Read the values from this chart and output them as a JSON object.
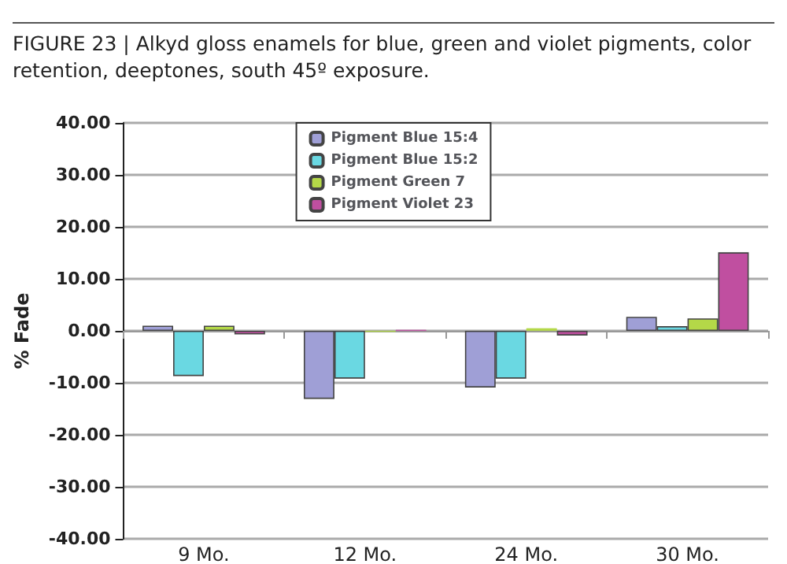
{
  "chart_data": {
    "type": "bar",
    "title": "FIGURE 23 | Alkyd gloss enamels for blue, green and violet pigments, color retention, deeptones, south 45º exposure.",
    "ylabel": "% Fade",
    "categories": [
      "9 Mo.",
      "12 Mo.",
      "24 Mo.",
      "30 Mo."
    ],
    "series": [
      {
        "name": "Pigment Blue 15:4",
        "color": "#9f9fd6",
        "values": [
          1.0,
          -13.1,
          -10.9,
          2.7
        ]
      },
      {
        "name": "Pigment Blue 15:2",
        "color": "#6ad8e2",
        "values": [
          -8.7,
          -9.2,
          -9.2,
          0.9
        ]
      },
      {
        "name": "Pigment Green 7",
        "color": "#b4d848",
        "values": [
          1.0,
          -0.2,
          0.5,
          2.4
        ]
      },
      {
        "name": "Pigment Violet 23",
        "color": "#c04fa0",
        "values": [
          -0.7,
          0.2,
          -0.9,
          15.1
        ]
      }
    ],
    "ylim": [
      -40,
      40
    ],
    "yticks": [
      {
        "value": -40,
        "label": "-40.00"
      },
      {
        "value": -30,
        "label": "-30.00"
      },
      {
        "value": -20,
        "label": "-20.00"
      },
      {
        "value": -10,
        "label": "-10.00"
      },
      {
        "value": 0,
        "label": "0.00"
      },
      {
        "value": 10,
        "label": "10.00"
      },
      {
        "value": 20,
        "label": "20.00"
      },
      {
        "value": 30,
        "label": "30.00"
      },
      {
        "value": 40,
        "label": "40.00"
      }
    ],
    "grid": "y",
    "legend": "top"
  }
}
